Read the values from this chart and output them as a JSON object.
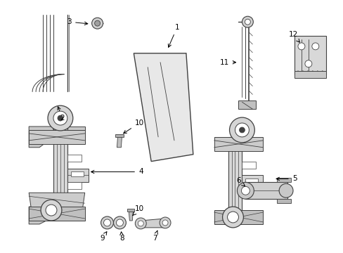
{
  "background_color": "#ffffff",
  "line_color": "#404040",
  "fig_width": 4.89,
  "fig_height": 3.6,
  "dpi": 100
}
